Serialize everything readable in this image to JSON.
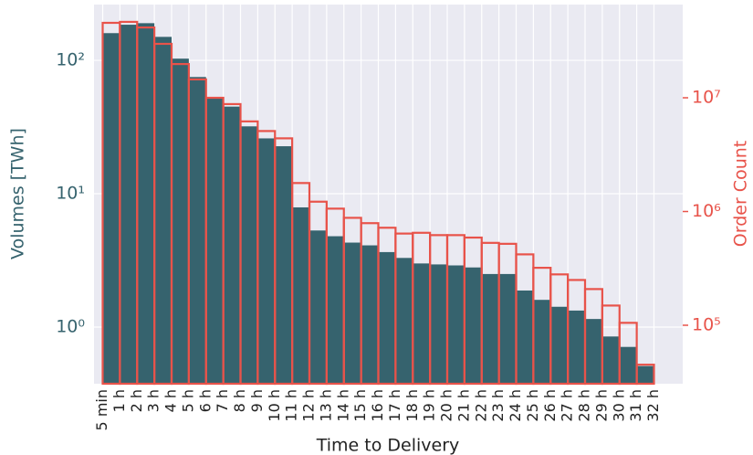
{
  "chart_data": {
    "type": "histogram",
    "xlabel": "Time to Delivery",
    "ylabel": "Volumes [TWh]",
    "y2label": "Order Count",
    "bins": [
      "5 min",
      "1 h",
      "2 h",
      "3 h",
      "4 h",
      "5 h",
      "6 h",
      "7 h",
      "8 h",
      "9 h",
      "10 h",
      "11 h",
      "12 h",
      "13 h",
      "14 h",
      "15 h",
      "16 h",
      "17 h",
      "18 h",
      "19 h",
      "20 h",
      "21 h",
      "22 h",
      "23 h",
      "24 h",
      "25 h",
      "26 h",
      "27 h",
      "28 h",
      "29 h",
      "30 h",
      "31 h",
      "32 h"
    ],
    "series": [
      {
        "name": "Volumes",
        "color": "#36636e",
        "style": "filled",
        "axis": "y",
        "values": [
          160,
          185,
          190,
          150,
          103,
          75,
          52,
          45,
          32,
          26,
          22.7,
          7.9,
          5.3,
          4.8,
          4.3,
          4.1,
          3.65,
          3.3,
          3.0,
          2.95,
          2.9,
          2.8,
          2.5,
          2.5,
          1.88,
          1.6,
          1.42,
          1.33,
          1.15,
          0.85,
          0.71,
          0.51
        ]
      },
      {
        "name": "Order Count",
        "color": "#e8534a",
        "style": "outline",
        "axis": "y2",
        "values": [
          45600000,
          46500000,
          41500000,
          29800000,
          19800000,
          14500000,
          10000000,
          8800000,
          6200000,
          5100000,
          4400000,
          1780000,
          1220000,
          1060000,
          880000,
          790000,
          720000,
          640000,
          650000,
          620000,
          620000,
          590000,
          530000,
          520000,
          420000,
          320000,
          280000,
          250000,
          208000,
          149000,
          105000,
          45000
        ]
      }
    ],
    "ylim": [
      0.376,
      262
    ],
    "yscale": "log",
    "yticks": [
      {
        "value": 1,
        "label": "10⁰"
      },
      {
        "value": 10,
        "label": "10¹"
      },
      {
        "value": 100,
        "label": "10²"
      }
    ],
    "y2lim": [
      30600,
      66000000
    ],
    "y2scale": "log",
    "y2ticks": [
      {
        "value": 100000,
        "label": "10⁵"
      },
      {
        "value": 1000000,
        "label": "10⁶"
      },
      {
        "value": 10000000,
        "label": "10⁷"
      }
    ],
    "grid": true
  }
}
